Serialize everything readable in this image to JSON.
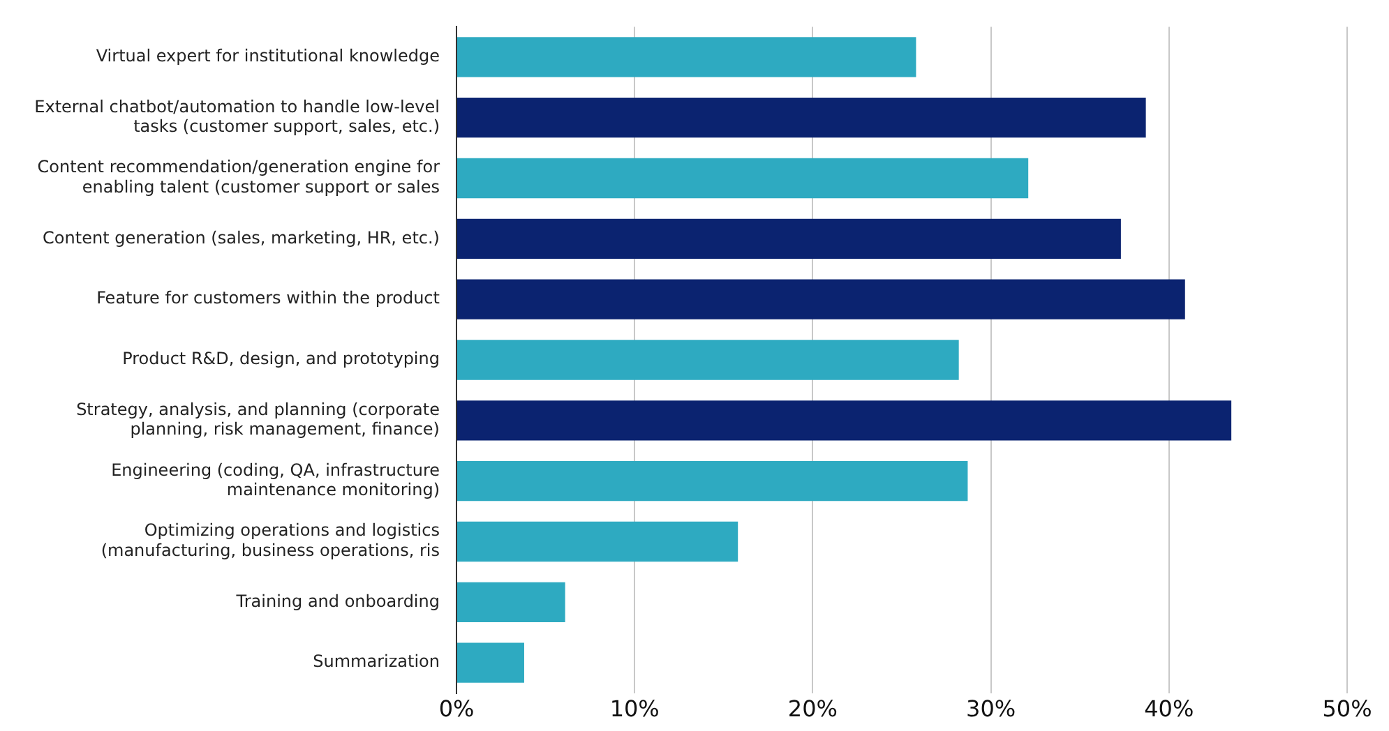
{
  "chart_data": {
    "type": "bar",
    "orientation": "horizontal",
    "categories": [
      "Virtual expert for institutional knowledge",
      "External chatbot/automation to handle low-level tasks (customer support, sales, etc.)",
      "Content recommendation/generation engine for enabling talent (customer support or sales",
      "Content generation (sales, marketing, HR, etc.)",
      "Feature for customers within the product",
      "Product R&D, design, and prototyping",
      "Strategy, analysis, and planning (corporate planning, risk management, finance)",
      "Engineering (coding, QA, infrastructure maintenance monitoring)",
      "Optimizing operations and logistics (manufacturing, business operations, ris",
      "Training and onboarding",
      "Summarization"
    ],
    "values": [
      25.8,
      38.7,
      32.1,
      37.3,
      40.9,
      28.2,
      43.5,
      28.7,
      15.8,
      6.1,
      3.8
    ],
    "colors": [
      "#2eaac1",
      "#0b2370",
      "#2eaac1",
      "#0b2370",
      "#0b2370",
      "#2eaac1",
      "#0b2370",
      "#2eaac1",
      "#2eaac1",
      "#2eaac1",
      "#2eaac1"
    ],
    "xlim": [
      0,
      50
    ],
    "xticks": [
      {
        "value": 0,
        "label": "0%"
      },
      {
        "value": 10,
        "label": "10%"
      },
      {
        "value": 20,
        "label": "20%"
      },
      {
        "value": 30,
        "label": "30%"
      },
      {
        "value": 40,
        "label": "40%"
      },
      {
        "value": 50,
        "label": "50%"
      }
    ],
    "grid": "x",
    "legend": false
  }
}
